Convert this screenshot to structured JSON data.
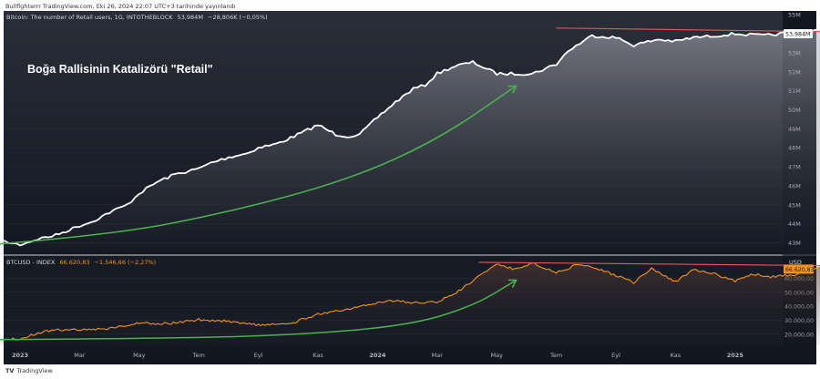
{
  "header": {
    "publish_line": "Bullfighterrr TradingView.com, Eki 26, 2024 22:07 UTC+3 tarihinde yayınlandı"
  },
  "footer": {
    "brand": "TradingView",
    "logo_text": "TV"
  },
  "colors": {
    "background": "#131722",
    "retail_line": "#ffffff",
    "btc_line": "#f7931a",
    "arrow": "#4caf50",
    "resistance": "#ef5350",
    "btc_price_tag": "#f7931a",
    "price_tag": "#ffffff"
  },
  "chart_data": [
    {
      "type": "line",
      "title": "Bitcoin: The number of Retail users, 1G, INTOTHEBLOCK",
      "legend": {
        "name": "Bitcoin: The number of Retail users, 1G, INTOTHEBLOCK",
        "value": "53,984M",
        "change": "−28,806K (−0,05%)"
      },
      "annotation": "Boğa Rallisinin Katalizörü \"Retail\"",
      "price_tag": "53,984M",
      "ylim": [
        42.4,
        55.2
      ],
      "y_ticks": [
        43,
        44,
        45,
        46,
        47,
        48,
        49,
        50,
        51,
        52,
        53,
        54,
        55
      ],
      "y_tick_labels": [
        "43M",
        "44M",
        "45M",
        "46M",
        "47M",
        "48M",
        "49M",
        "50M",
        "51M",
        "52M",
        "53M",
        "54M",
        "55M"
      ],
      "x": [
        -0.5,
        0,
        0.3,
        0.6,
        1.0,
        1.2,
        1.5,
        1.8,
        2.0,
        2.3,
        2.6,
        3.0,
        3.2,
        3.5,
        3.8,
        4.0,
        4.3,
        4.6,
        5.0,
        5.3,
        5.5,
        5.7,
        6.0,
        6.3,
        6.6,
        6.8,
        7.0,
        7.3,
        7.6,
        8.0,
        8.3,
        8.6,
        9.0,
        9.2,
        9.4,
        9.6,
        10.0,
        10.3,
        10.7,
        11.0,
        11.3,
        11.7,
        12.0,
        12.5,
        13.0,
        13.4,
        13.8
      ],
      "y": [
        43.2,
        42.9,
        43.2,
        43.4,
        43.9,
        44.1,
        44.6,
        45.0,
        45.6,
        46.2,
        46.6,
        46.9,
        47.2,
        47.5,
        47.7,
        48.0,
        48.2,
        48.6,
        49.2,
        48.7,
        48.6,
        48.7,
        49.6,
        50.4,
        51.1,
        51.3,
        51.9,
        52.3,
        52.5,
        51.9,
        51.9,
        51.9,
        52.4,
        53.1,
        53.5,
        53.9,
        53.8,
        53.4,
        53.7,
        53.6,
        53.8,
        53.9,
        54.0,
        53.9,
        54.1,
        54.2,
        54.0
      ],
      "resistance_line": {
        "x": [
          9.0,
          13.7
        ],
        "y": [
          54.3,
          54.1
        ]
      },
      "arrow": {
        "x": [
          -0.5,
          1.5,
          3.5,
          5.5,
          7.0,
          8.3
        ],
        "y": [
          42.9,
          43.4,
          44.6,
          46.3,
          48.4,
          51.2
        ]
      }
    },
    {
      "type": "line",
      "title": "BTCUSD - INDEX",
      "legend": {
        "name": "BTCUSD - INDEX",
        "value": "66.620,83",
        "change": "−1.546,66 (−2,27%)"
      },
      "price_tag": "66.620,83",
      "ylim": [
        12000,
        76000
      ],
      "y_ticks": [
        20000,
        30000,
        40000,
        50000,
        60000
      ],
      "y_tick_labels": [
        "20.000,00",
        "30.000,00",
        "40.000,00",
        "50.000,00",
        "60.000,00"
      ],
      "top_label": "USD",
      "x_tick_labels": [
        "2023",
        "Mar",
        "May",
        "Tem",
        "Eyl",
        "Kas",
        "2024",
        "Mar",
        "May",
        "Tem",
        "Eyl",
        "Kas",
        "2025"
      ],
      "x": [
        -0.5,
        0,
        0.3,
        0.6,
        1.0,
        1.5,
        2.0,
        2.5,
        3.0,
        3.5,
        4.0,
        4.5,
        5.0,
        5.5,
        6.0,
        6.3,
        6.6,
        7.0,
        7.2,
        7.4,
        7.7,
        8.0,
        8.3,
        8.6,
        9.0,
        9.3,
        9.6,
        10.0,
        10.3,
        10.6,
        11.0,
        11.3,
        11.6,
        12.0,
        12.3,
        12.6,
        13.0,
        13.3,
        13.5,
        13.8
      ],
      "y": [
        16700,
        16600,
        20900,
        23000,
        23300,
        24000,
        28000,
        27500,
        30500,
        29300,
        26500,
        27000,
        34500,
        37500,
        42500,
        44200,
        42500,
        43000,
        47000,
        52000,
        61800,
        70000,
        66500,
        71000,
        64000,
        69000,
        68500,
        62000,
        57000,
        67000,
        57500,
        66000,
        64000,
        58000,
        63000,
        61000,
        62500,
        67000,
        68500,
        66620
      ],
      "resistance_line": {
        "x": [
          7.7,
          13.8
        ],
        "y": [
          71500,
          69000
        ]
      },
      "arrow": {
        "x": [
          -0.5,
          2.0,
          4.5,
          6.5,
          7.6,
          8.3
        ],
        "y": [
          16000,
          16700,
          19000,
          26000,
          40000,
          58000
        ]
      }
    }
  ]
}
